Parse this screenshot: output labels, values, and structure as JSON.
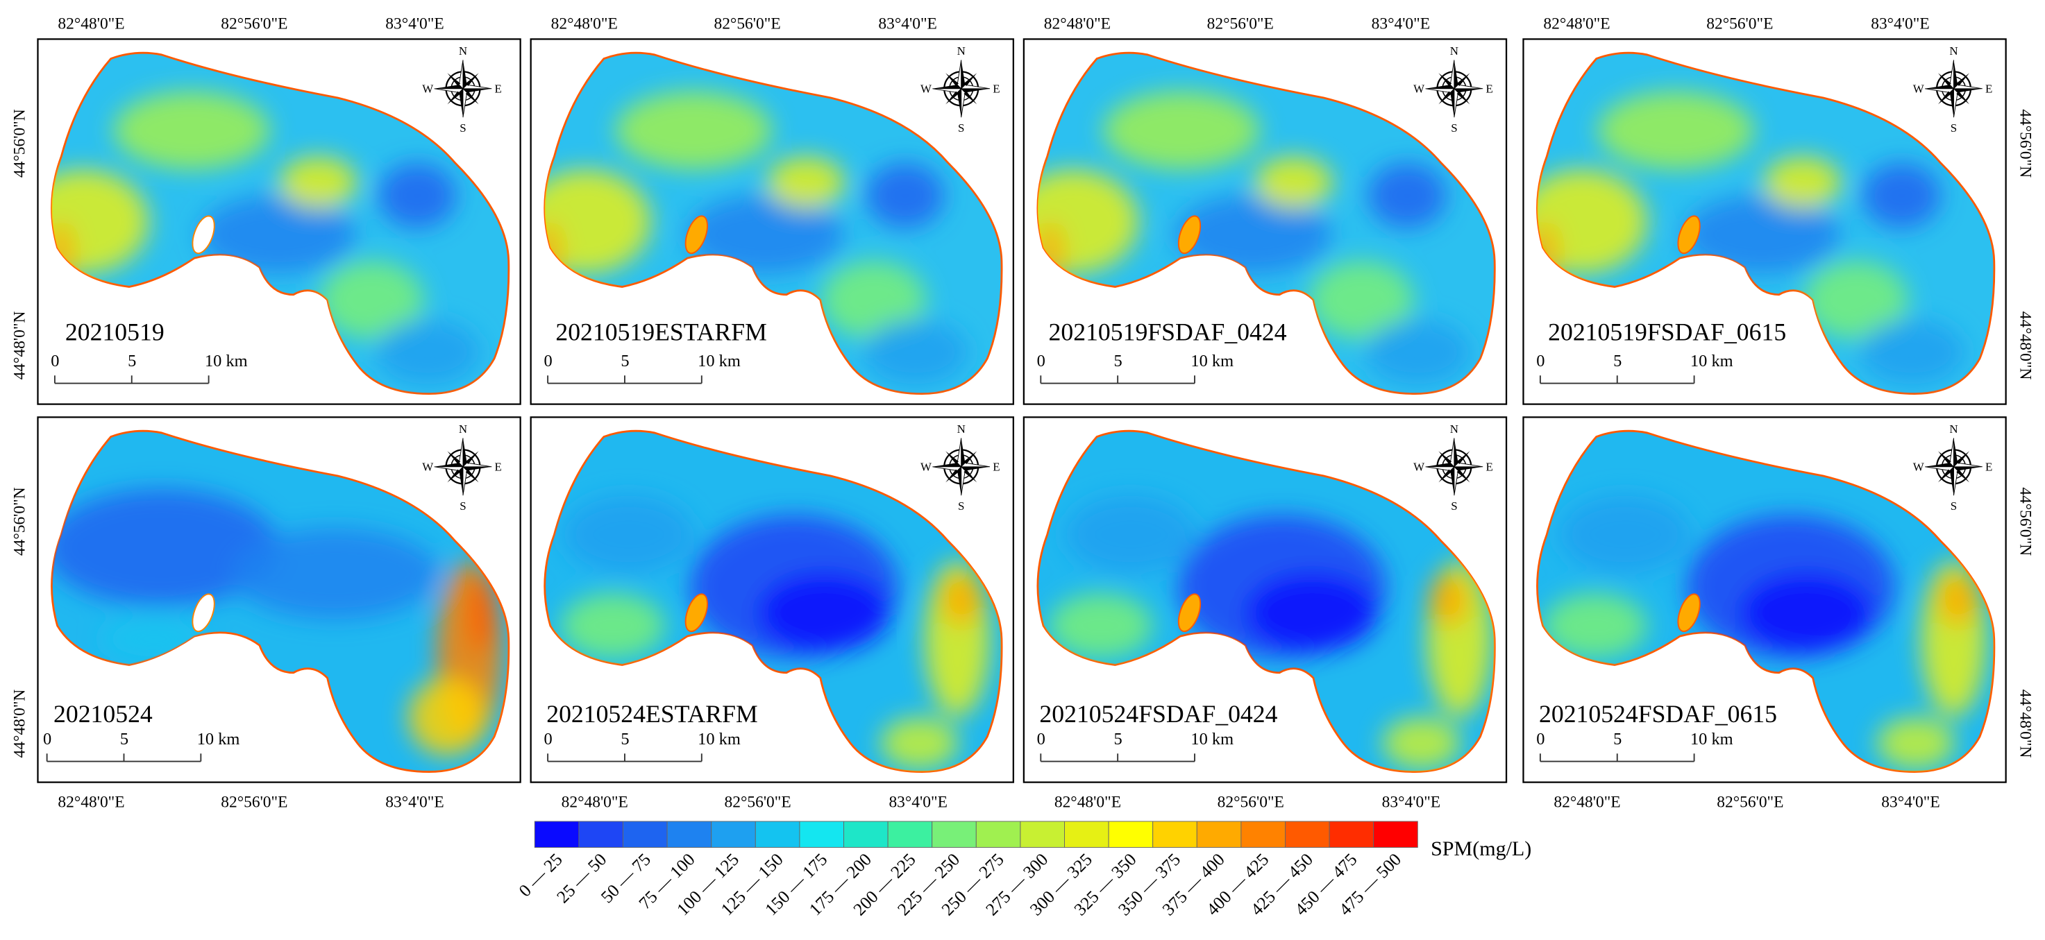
{
  "panels": [
    {
      "label": "20210519"
    },
    {
      "label": "20210519ESTARFM"
    },
    {
      "label": "20210519FSDAF_0424"
    },
    {
      "label": "20210519FSDAF_0615"
    },
    {
      "label": "20210524"
    },
    {
      "label": "20210524ESTARFM"
    },
    {
      "label": "20210524FSDAF_0424"
    },
    {
      "label": "20210524FSDAF_0615"
    }
  ],
  "lon_labels": [
    "82°48'0\"E",
    "82°56'0\"E",
    "83°4'0\"E"
  ],
  "lat_labels": [
    "44°56'0\"N",
    "44°48'0\"N"
  ],
  "scale_bar": [
    "0",
    "5",
    "10 km"
  ],
  "compass": {
    "n": "N",
    "e": "E",
    "s": "S",
    "w": "W"
  },
  "legend": {
    "title": "SPM(mg/L)",
    "classes": [
      {
        "label": "0 — 25",
        "color": "#0a0aff"
      },
      {
        "label": "25 — 50",
        "color": "#1e46f5"
      },
      {
        "label": "50 — 75",
        "color": "#1e64f0"
      },
      {
        "label": "75 — 100",
        "color": "#1e82f0"
      },
      {
        "label": "100 — 125",
        "color": "#1ea0f0"
      },
      {
        "label": "125 — 150",
        "color": "#14c3f0"
      },
      {
        "label": "150 — 175",
        "color": "#14e6f0"
      },
      {
        "label": "175 — 200",
        "color": "#1ee6c8"
      },
      {
        "label": "200 — 225",
        "color": "#3cf0a0"
      },
      {
        "label": "225 — 250",
        "color": "#78f078"
      },
      {
        "label": "250 — 275",
        "color": "#a0f050"
      },
      {
        "label": "275 — 300",
        "color": "#c8f032"
      },
      {
        "label": "300 — 325",
        "color": "#e6f014"
      },
      {
        "label": "325 — 350",
        "color": "#ffff00"
      },
      {
        "label": "350 — 375",
        "color": "#ffd200"
      },
      {
        "label": "375 — 400",
        "color": "#ffaa00"
      },
      {
        "label": "400 — 425",
        "color": "#ff8200"
      },
      {
        "label": "425 — 450",
        "color": "#ff5a00"
      },
      {
        "label": "450 — 475",
        "color": "#ff2d00"
      },
      {
        "label": "475 — 500",
        "color": "#ff0000"
      }
    ]
  }
}
